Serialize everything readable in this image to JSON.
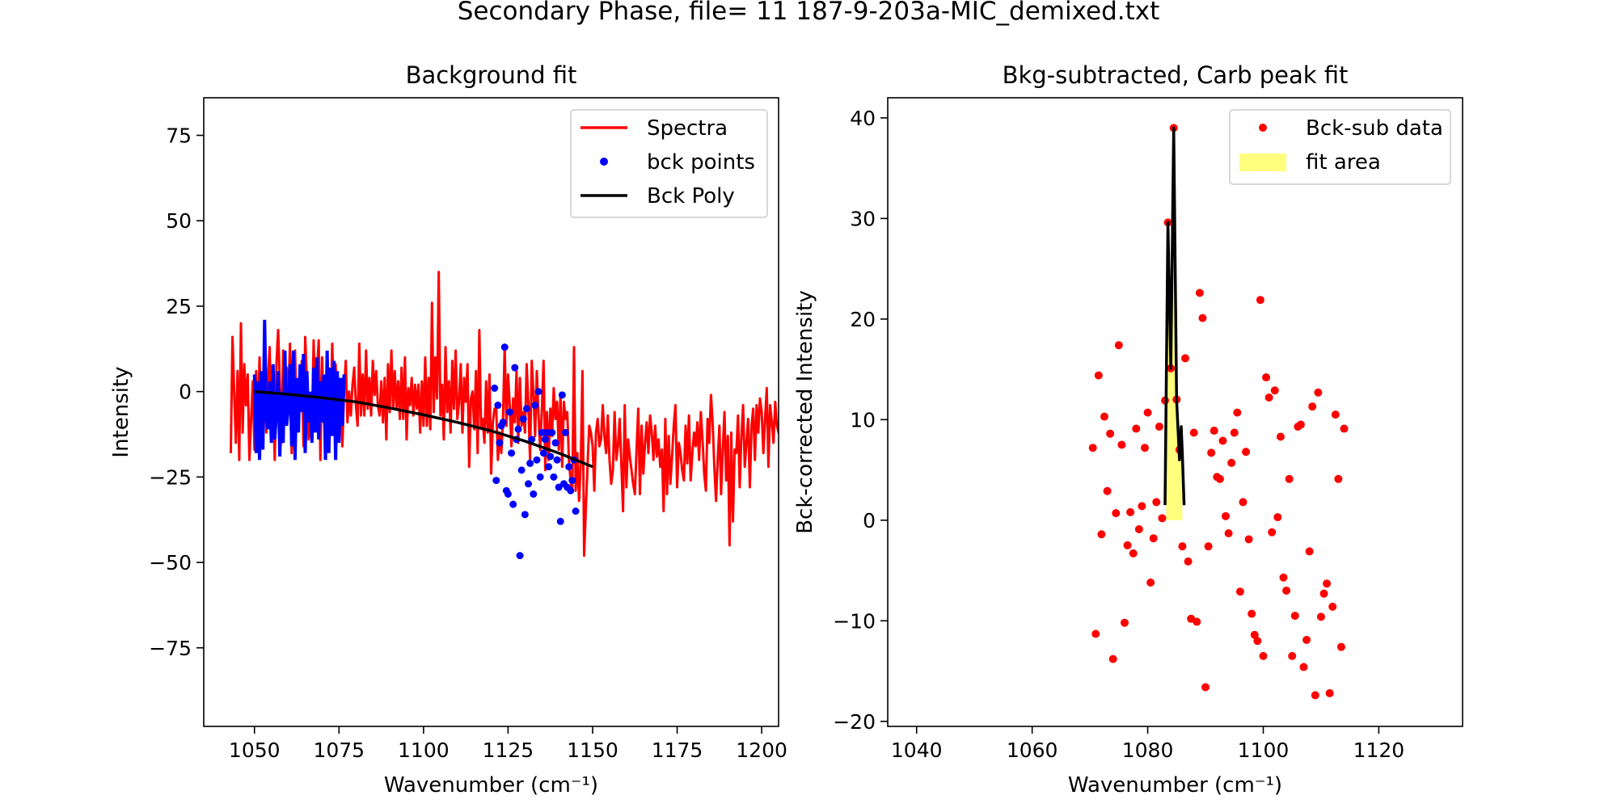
{
  "figure": {
    "suptitle": "Secondary Phase, file= 11 187-9-203a-MIC_demixed.txt"
  },
  "chart_data": [
    {
      "type": "line",
      "title": "Background fit",
      "xlabel": "Wavenumber (cm⁻¹)",
      "ylabel": "Intensity",
      "xlim": [
        1035,
        1205
      ],
      "ylim": [
        -98,
        86
      ],
      "xticks": [
        1050,
        1075,
        1100,
        1125,
        1150,
        1175,
        1200
      ],
      "yticks": [
        -75,
        -50,
        -25,
        0,
        25,
        50,
        75
      ],
      "legend_position": "top-right",
      "legend": [
        {
          "label": "Spectra",
          "kind": "line",
          "color": "#ff0000"
        },
        {
          "label": "bck points",
          "kind": "marker",
          "color": "#0000ff"
        },
        {
          "label": "Bck Poly",
          "kind": "line",
          "color": "#000000"
        }
      ],
      "series": [
        {
          "name": "Spectra",
          "kind": "line",
          "color": "#ff0000",
          "x_start": 1043,
          "x_step": 0.5,
          "y": [
            -18,
            16,
            0,
            -15,
            6,
            -20,
            20,
            -12,
            8,
            -4,
            5,
            -20,
            -8,
            3,
            -17,
            6,
            -11,
            10,
            -8,
            -3,
            9,
            -12,
            4,
            13,
            -12,
            -2,
            -20,
            8,
            18,
            3,
            -15,
            12,
            -8,
            7,
            -3,
            14,
            -18,
            4,
            12,
            -10,
            -8,
            1,
            9,
            -16,
            16,
            3,
            -14,
            -8,
            -12,
            15,
            -6,
            6,
            15,
            -20,
            10,
            -9,
            4,
            -15,
            5,
            -6,
            14,
            -4,
            8,
            -5,
            -11,
            2,
            -16,
            0,
            9,
            -9,
            0,
            -7,
            2,
            7,
            -4,
            -10,
            14,
            -7,
            5,
            -7,
            12,
            -5,
            4,
            -7,
            9,
            -1,
            6,
            -4,
            -7,
            3,
            -9,
            4,
            -14,
            8,
            -6,
            12,
            -5,
            6,
            -5,
            3,
            -8,
            7,
            -8,
            10,
            -14,
            1,
            -4,
            4,
            -7,
            2,
            -5,
            2,
            -12,
            3,
            -10,
            10,
            -10,
            4,
            -11,
            26,
            -6,
            10,
            -2,
            35,
            -7,
            2,
            -14,
            13,
            -6,
            3,
            -12,
            9,
            -5,
            12,
            -8,
            -3,
            8,
            -12,
            4,
            -3,
            8,
            -22,
            -2,
            0,
            -11,
            6,
            -18,
            18,
            -10,
            -8,
            -15,
            3,
            -12,
            5,
            -24,
            -9,
            -5,
            -5,
            -20,
            -12,
            -18,
            -8,
            13,
            -10,
            5,
            -4,
            -16,
            -2,
            -9,
            6,
            -15,
            4,
            -10,
            -6,
            -12,
            8,
            -4,
            -20,
            9,
            0,
            -13,
            6,
            -7,
            -17,
            -5,
            9,
            -23,
            -6,
            -20,
            -5,
            -13,
            1,
            -8,
            -3,
            -17,
            -1,
            -22,
            -3,
            -8,
            -6,
            -20,
            -26,
            -29,
            13,
            -29,
            -18,
            -32,
            -21,
            6,
            -48,
            -34,
            -22,
            -10,
            -12,
            -16,
            -29,
            -12,
            -8,
            -16,
            -14,
            -4,
            -13,
            -18,
            -7,
            -20,
            -27,
            -23,
            -6,
            -20,
            -16,
            -8,
            -21,
            -35,
            -4,
            -28,
            -14,
            -19,
            -23,
            -27,
            -30,
            -17,
            -5,
            -30,
            -10,
            -24,
            -15,
            -9,
            -18,
            -7,
            -12,
            -20,
            -10,
            -19,
            -14,
            -22,
            -17,
            -35,
            -8,
            -30,
            -13,
            -27,
            -19,
            -10,
            -4,
            -28,
            -15,
            -18,
            -23,
            -26,
            -10,
            -21,
            -7,
            -26,
            -18,
            -12,
            -16,
            -9,
            -20,
            -6,
            -14,
            -24,
            -29,
            -8,
            -15,
            -1,
            -9,
            -22,
            -32,
            -20,
            -10,
            -30,
            -17,
            -6,
            -26,
            -13,
            -45,
            -12,
            -38,
            -17,
            -18,
            -7,
            -28,
            -13,
            -4,
            -22,
            -15,
            -8,
            -28,
            -10,
            -5,
            -20,
            -4,
            -12,
            -2,
            -6,
            -18,
            -8,
            1,
            -22,
            -4,
            -9,
            -15,
            -3,
            -10,
            -12,
            -6,
            1,
            -17,
            -9,
            -4,
            -14,
            -4,
            20,
            -7,
            3,
            -16,
            -8,
            -20,
            6,
            -12,
            3,
            -18,
            8,
            -5,
            -20,
            -10,
            -15,
            -22,
            12,
            -8,
            -25,
            3,
            -12,
            7,
            -28,
            -5,
            -10,
            -2,
            5,
            -23,
            7
          ]
        },
        {
          "name": "bck points",
          "kind": "line-marker",
          "color": "#0000ff",
          "x_start": 1050,
          "x_step": 0.5,
          "y": [
            5,
            -18,
            3,
            -20,
            6,
            -17,
            21,
            -8,
            -11,
            3,
            -15,
            8,
            -14,
            -6,
            6,
            -19,
            0,
            -15,
            12,
            -10,
            -5,
            8,
            -16,
            12,
            -20,
            4,
            -12,
            8,
            -6,
            11,
            -18,
            6,
            -9,
            0,
            -15,
            7,
            -12,
            10,
            -14,
            3,
            -9,
            5,
            -20,
            12,
            -18,
            7,
            -13,
            9,
            -20,
            6,
            -15,
            4,
            -10,
            5
          ],
          "y2_x_start": 1121,
          "y2_x_step": 0.5,
          "y2": [
            1,
            -26,
            -4,
            -15,
            -10,
            -9,
            13,
            -29,
            -30,
            -6,
            -18,
            -33,
            7,
            -14,
            -11,
            -48,
            -23,
            -8,
            -36,
            -5,
            -27,
            -21,
            -14,
            -30,
            -4,
            -20,
            0,
            -25,
            -12,
            -18,
            -14,
            -12,
            -22,
            -19,
            -12,
            -25,
            -15,
            -20,
            -28,
            -38,
            -1,
            -27,
            -12,
            -28,
            -22,
            -29,
            -26,
            -20,
            -35
          ]
        },
        {
          "name": "Bck Poly",
          "kind": "line",
          "color": "#000000",
          "x": [
            1050,
            1060,
            1070,
            1080,
            1090,
            1100,
            1110,
            1120,
            1130,
            1140,
            1150
          ],
          "y": [
            0,
            -0.8,
            -1.8,
            -3.0,
            -4.8,
            -6.8,
            -9.0,
            -11.5,
            -14.5,
            -18.0,
            -22.0
          ]
        }
      ]
    },
    {
      "type": "scatter",
      "title": "Bkg-subtracted, Carb peak fit",
      "xlabel": "Wavenumber (cm⁻¹)",
      "ylabel": "Bck-corrected Intensity",
      "xlim": [
        1035,
        1134.5
      ],
      "ylim": [
        -20.5,
        42
      ],
      "xticks": [
        1040,
        1060,
        1080,
        1100,
        1120
      ],
      "yticks": [
        -20,
        -10,
        0,
        10,
        20,
        30,
        40
      ],
      "legend_position": "top-right",
      "legend": [
        {
          "label": "Bck-sub data",
          "kind": "marker",
          "color": "#ff0000"
        },
        {
          "label": "fit area",
          "kind": "patch",
          "color": "#ffff66"
        }
      ],
      "series": [
        {
          "name": "Bck-sub data",
          "kind": "scatter",
          "color": "#ff0000",
          "points": [
            [
              1070.5,
              7.2
            ],
            [
              1071,
              -11.3
            ],
            [
              1071.5,
              14.4
            ],
            [
              1072,
              -1.4
            ],
            [
              1072.5,
              10.3
            ],
            [
              1073,
              2.9
            ],
            [
              1073.5,
              8.6
            ],
            [
              1074,
              -13.8
            ],
            [
              1074.5,
              0.7
            ],
            [
              1075,
              17.4
            ],
            [
              1075.5,
              7.5
            ],
            [
              1076,
              -10.2
            ],
            [
              1076.5,
              -2.5
            ],
            [
              1077,
              0.8
            ],
            [
              1077.5,
              -3.3
            ],
            [
              1078,
              9.1
            ],
            [
              1078.5,
              -0.9
            ],
            [
              1079,
              1.4
            ],
            [
              1079.5,
              7.2
            ],
            [
              1080,
              10.7
            ],
            [
              1080.5,
              -6.2
            ],
            [
              1081,
              -1.8
            ],
            [
              1081.5,
              1.8
            ],
            [
              1082,
              9.3
            ],
            [
              1082.5,
              0.2
            ],
            [
              1083,
              11.9
            ],
            [
              1083.5,
              29.6
            ],
            [
              1084,
              15.1
            ],
            [
              1084.5,
              39.0
            ],
            [
              1085,
              12.0
            ],
            [
              1085.5,
              7.0
            ],
            [
              1086,
              -2.6
            ],
            [
              1086.5,
              16.1
            ],
            [
              1087,
              -4.1
            ],
            [
              1087.5,
              -9.8
            ],
            [
              1088,
              8.7
            ],
            [
              1088.5,
              -10.1
            ],
            [
              1089,
              22.6
            ],
            [
              1089.5,
              20.1
            ],
            [
              1090,
              -16.6
            ],
            [
              1090.5,
              -2.6
            ],
            [
              1091,
              6.7
            ],
            [
              1091.5,
              8.9
            ],
            [
              1092,
              4.3
            ],
            [
              1092.5,
              4.1
            ],
            [
              1093,
              7.9
            ],
            [
              1093.5,
              0.4
            ],
            [
              1094,
              -1.3
            ],
            [
              1094.5,
              5.7
            ],
            [
              1095,
              8.7
            ],
            [
              1095.5,
              10.7
            ],
            [
              1096,
              -7.1
            ],
            [
              1096.5,
              1.8
            ],
            [
              1097,
              6.8
            ],
            [
              1097.5,
              -1.9
            ],
            [
              1098,
              -9.3
            ],
            [
              1098.5,
              -11.4
            ],
            [
              1099,
              -12.0
            ],
            [
              1099.5,
              21.9
            ],
            [
              1100,
              -13.5
            ],
            [
              1100.5,
              14.2
            ],
            [
              1101,
              12.2
            ],
            [
              1101.5,
              -1.2
            ],
            [
              1102,
              12.9
            ],
            [
              1102.5,
              0.3
            ],
            [
              1103,
              8.3
            ],
            [
              1103.5,
              -5.7
            ],
            [
              1104,
              -7.0
            ],
            [
              1104.5,
              4.1
            ],
            [
              1105,
              -13.5
            ],
            [
              1105.5,
              -9.5
            ],
            [
              1106,
              9.3
            ],
            [
              1106.5,
              9.5
            ],
            [
              1107,
              -14.6
            ],
            [
              1107.5,
              -11.9
            ],
            [
              1108,
              -3.1
            ],
            [
              1108.5,
              11.3
            ],
            [
              1109,
              -17.4
            ],
            [
              1109.5,
              12.7
            ],
            [
              1110,
              -9.6
            ],
            [
              1110.5,
              -7.3
            ],
            [
              1111,
              -6.3
            ],
            [
              1111.5,
              -17.2
            ],
            [
              1112,
              -8.6
            ],
            [
              1112.5,
              10.5
            ],
            [
              1113,
              4.1
            ],
            [
              1113.5,
              -12.6
            ],
            [
              1114,
              9.1
            ]
          ]
        },
        {
          "name": "fit",
          "kind": "line",
          "color": "#000000",
          "x": [
            1083,
            1083.5,
            1084,
            1084.5,
            1085,
            1085.5,
            1085.8,
            1086,
            1086.3
          ],
          "y": [
            1.5,
            29.6,
            15.1,
            39.0,
            12.0,
            6.0,
            9.3,
            6.5,
            1.5
          ]
        },
        {
          "name": "fit area",
          "kind": "area",
          "color": "#ffff66",
          "x": [
            1083.2,
            1083.5,
            1084,
            1084.5,
            1085,
            1085.5,
            1085.8,
            1086
          ],
          "y": [
            4,
            29,
            15,
            38.5,
            12,
            6.5,
            9,
            4
          ]
        }
      ]
    }
  ]
}
